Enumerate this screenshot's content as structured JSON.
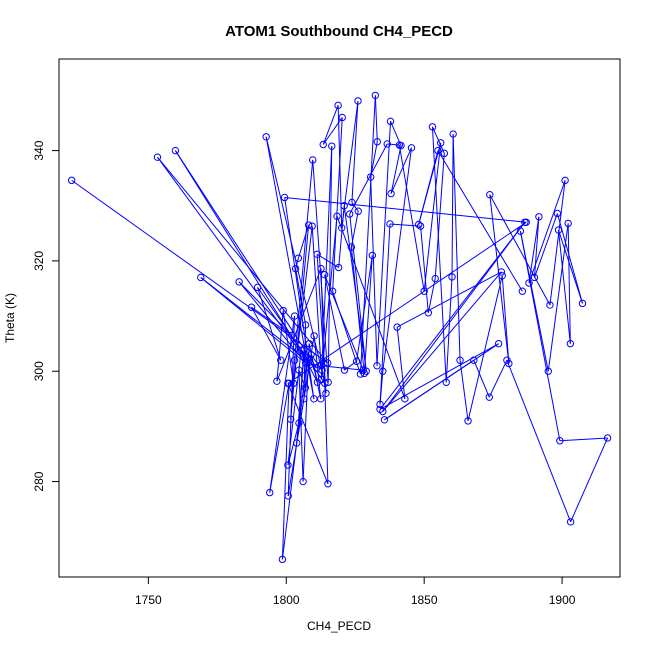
{
  "chart_data": {
    "type": "line",
    "title": "ATOM1 Southbound CH4_PECD",
    "xlabel": "CH4_PECD",
    "ylabel": "Theta (K)",
    "xlim": [
      1717.6,
      1921.0
    ],
    "ylim": [
      262.7,
      356.6
    ],
    "xticks": [
      1750,
      1800,
      1850,
      1900
    ],
    "yticks": [
      280,
      300,
      320,
      340
    ],
    "series": [
      {
        "color": "#0000ff",
        "marker": "open-circle",
        "points": [
          [
            1722.2,
            334.6
          ],
          [
            1815,
            301.5
          ],
          [
            1753.3,
            338.8
          ],
          [
            1808,
            301.5
          ],
          [
            1759.8,
            340.0
          ],
          [
            1811,
            300.6
          ],
          [
            1769.0,
            317.0
          ],
          [
            1807,
            301.5
          ],
          [
            1782.9,
            316.2
          ],
          [
            1802,
            306.5
          ],
          [
            1787.4,
            311.6
          ],
          [
            1798,
            302
          ],
          [
            1789.6,
            315.2
          ],
          [
            1814,
            297.8
          ],
          [
            1792.7,
            342.5
          ],
          [
            1810,
            295
          ],
          [
            1799.4,
            331.5
          ],
          [
            1887,
            327
          ],
          [
            1800.6,
            297.8
          ],
          [
            1815.1,
            279.6
          ],
          [
            1812.6,
            318.6
          ],
          [
            1796.6,
            298.2
          ],
          [
            1798.9,
            311.0
          ],
          [
            1802.6,
            297.8
          ],
          [
            1809.4,
            326.3
          ],
          [
            1812.6,
            301
          ],
          [
            1827.9,
            300.2
          ],
          [
            1813.9,
            317.5
          ],
          [
            1821.1,
            300.2
          ],
          [
            1825.5,
            301.8
          ],
          [
            1831.2,
            321.0
          ],
          [
            1828.3,
            299.6
          ],
          [
            1823.6,
            322.5
          ],
          [
            1826.1,
            329.0
          ],
          [
            1823.8,
            330.6
          ],
          [
            1826.0,
            349.0
          ],
          [
            1820.1,
            326
          ],
          [
            1818.8,
            348.2
          ],
          [
            1813.4,
            341.1
          ],
          [
            1820.3,
            346
          ],
          [
            1816.8,
            314.5
          ],
          [
            1826.9,
            299.5
          ],
          [
            1832.3,
            350.0
          ],
          [
            1833.0,
            341.6
          ],
          [
            1830.6,
            335.2
          ],
          [
            1832.9,
            301.0
          ],
          [
            1837.8,
            345.3
          ],
          [
            1841.6,
            340.9
          ],
          [
            1838.0,
            332.2
          ],
          [
            1845.4,
            340.5
          ],
          [
            1835.0,
            300.0
          ],
          [
            1834.0,
            294
          ],
          [
            1837.6,
            326.7
          ],
          [
            1848.7,
            326.3
          ],
          [
            1851.5,
            310.6
          ],
          [
            1854.0,
            316.8
          ],
          [
            1857.3,
            339.5
          ],
          [
            1853.0,
            344.3
          ],
          [
            1858.0,
            298
          ],
          [
            1860.1,
            317.1
          ],
          [
            1860.5,
            343.0
          ],
          [
            1863.0,
            302
          ],
          [
            1865.9,
            291.0
          ],
          [
            1878.3,
            317.3
          ],
          [
            1880.7,
            301.4
          ],
          [
            1873.8,
            332.0
          ],
          [
            1895.6,
            312
          ],
          [
            1901.1,
            334.6
          ],
          [
            1888.0,
            316
          ],
          [
            1891.6,
            328.0
          ],
          [
            1890.0,
            317
          ],
          [
            1898.3,
            328.6
          ],
          [
            1907.4,
            312.3
          ],
          [
            1898.7,
            325.6
          ],
          [
            1903.0,
            305
          ],
          [
            1902.2,
            326.8
          ],
          [
            1895.0,
            300
          ],
          [
            1884.9,
            325.4
          ],
          [
            1899.2,
            287.4
          ],
          [
            1916.5,
            287.9
          ],
          [
            1903.1,
            272.7
          ],
          [
            1880,
            302
          ],
          [
            1873.6,
            295.3
          ],
          [
            1868,
            302
          ],
          [
            1835.6,
            291.2
          ],
          [
            1877,
            305
          ],
          [
            1834.0,
            293.1
          ],
          [
            1886.5,
            327
          ],
          [
            1835.0,
            292.7
          ],
          [
            1878.0,
            318
          ],
          [
            1840.2,
            308.0
          ],
          [
            1843,
            295
          ],
          [
            1818.4,
            328.1
          ],
          [
            1812.7,
            298.5
          ],
          [
            1816.5,
            340.8
          ],
          [
            1815.2,
            298.0
          ],
          [
            1809.6,
            338.3
          ],
          [
            1803.0,
            302
          ],
          [
            1801.6,
            291.3
          ],
          [
            1808.1,
            326.5
          ],
          [
            1804.4,
            320.5
          ],
          [
            1803.4,
            318.6
          ],
          [
            1807.0,
            308.4
          ],
          [
            1806.4,
            295
          ],
          [
            1800.7,
            277.4
          ],
          [
            1803.0,
            310.0
          ],
          [
            1794.0,
            278.0
          ],
          [
            1801.0,
            297.8
          ],
          [
            1798.6,
            265.9
          ],
          [
            1807.6,
            302.5
          ],
          [
            1806.9,
            297.0
          ],
          [
            1804.6,
            300.2
          ],
          [
            1806.1,
            280.0
          ],
          [
            1808.3,
            305.0
          ],
          [
            1811.3,
            298
          ],
          [
            1805.4,
            303.8
          ],
          [
            1800.6,
            283.0
          ],
          [
            1804.6,
            290.6
          ],
          [
            1806.5,
            304.0
          ],
          [
            1803.8,
            287.0
          ],
          [
            1810.1,
            306.4
          ],
          [
            1812.5,
            295.0
          ],
          [
            1809.0,
            303.0
          ],
          [
            1813.0,
            300.2
          ],
          [
            1814.4,
            296.0
          ],
          [
            1811.2,
            321.2
          ],
          [
            1819.0,
            318.8
          ],
          [
            1821.0,
            330.0
          ],
          [
            1829.0,
            300.0
          ],
          [
            1823.0,
            328.5
          ],
          [
            1836.6,
            341.2
          ],
          [
            1841.0,
            341.0
          ],
          [
            1850.0,
            314.5
          ],
          [
            1856.0,
            341.4
          ],
          [
            1848.0,
            326.6
          ],
          [
            1855.0,
            340.0
          ],
          [
            1885.6,
            314.5
          ]
        ]
      }
    ]
  }
}
